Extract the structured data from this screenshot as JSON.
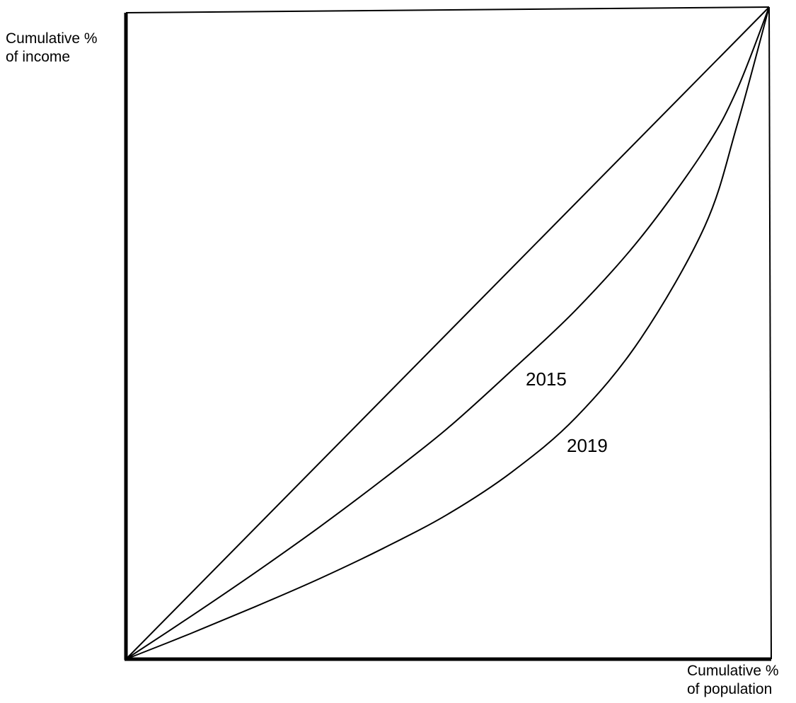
{
  "chart_data": {
    "type": "line",
    "title": "",
    "xlabel": {
      "line1": "Cumulative %",
      "line2": "of population"
    },
    "ylabel": {
      "line1": "Cumulative %",
      "line2": "of income"
    },
    "xlim": [
      0,
      100
    ],
    "ylim": [
      0,
      100
    ],
    "grid": false,
    "legend": "none",
    "series": [
      {
        "key": "equality",
        "x": [
          0,
          100
        ],
        "y": [
          0,
          100
        ]
      },
      {
        "key": "lorenz_2015",
        "name": "2015",
        "x": [
          0,
          10,
          20,
          30,
          40,
          50,
          60,
          70,
          80,
          90,
          95,
          100
        ],
        "y": [
          0,
          6.5,
          13.2,
          20.2,
          27.6,
          35.4,
          44.3,
          53.6,
          64.6,
          78.2,
          87.3,
          100
        ]
      },
      {
        "key": "lorenz_2019",
        "name": "2019",
        "x": [
          0,
          10,
          20,
          30,
          40,
          50,
          60,
          70,
          80,
          90,
          95,
          100
        ],
        "y": [
          0,
          3.9,
          8.0,
          12.3,
          17.0,
          22.2,
          28.7,
          37.1,
          49.1,
          66.4,
          81.8,
          100
        ]
      }
    ],
    "annotations": [
      {
        "text": "2015",
        "series": "lorenz_2015"
      },
      {
        "text": "2019",
        "series": "lorenz_2019"
      }
    ]
  }
}
